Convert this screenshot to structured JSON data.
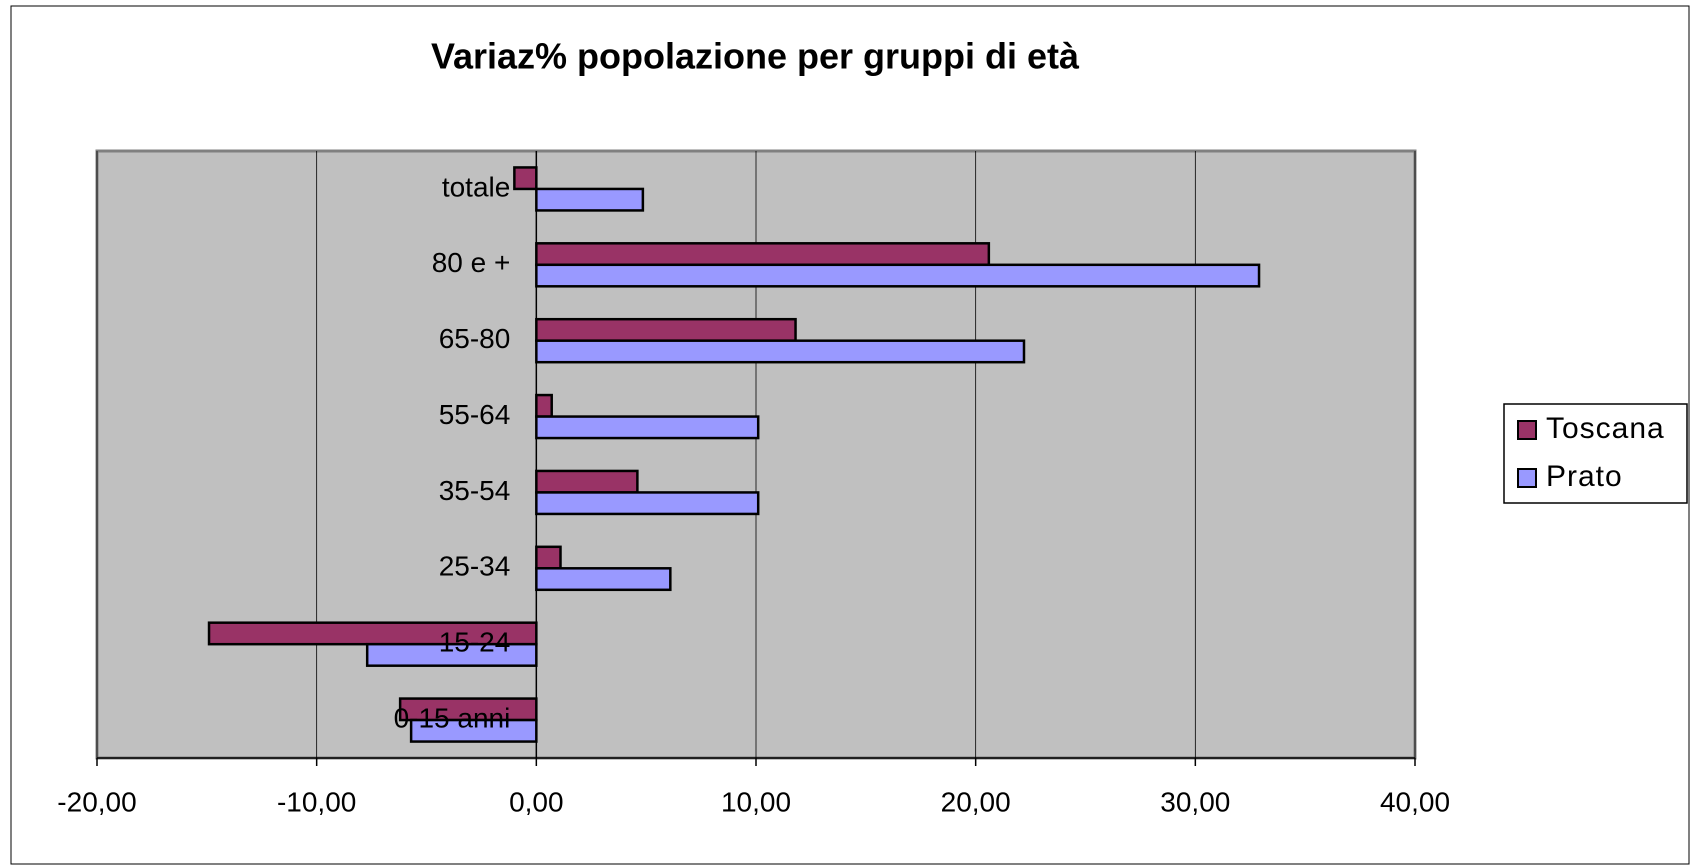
{
  "chart_data": {
    "type": "bar",
    "orientation": "horizontal",
    "title": "Variaz% popolazione per gruppi di età",
    "categories": [
      "0-15 anni",
      "15-24",
      "25-34",
      "35-54",
      "55-64",
      "65-80",
      "80 e +",
      "totale"
    ],
    "series": [
      {
        "name": "Toscana",
        "color": "#993366",
        "values": [
          -6.2,
          -14.9,
          1.1,
          4.6,
          0.7,
          11.8,
          20.6,
          -1.0
        ]
      },
      {
        "name": "Prato",
        "color": "#9999ff",
        "values": [
          -5.7,
          -7.7,
          6.1,
          10.1,
          10.1,
          22.2,
          32.9,
          4.85
        ]
      }
    ],
    "xlim": [
      -20,
      40
    ],
    "xticks": [
      {
        "value": -20,
        "label": "-20,00"
      },
      {
        "value": -10,
        "label": "-10,00"
      },
      {
        "value": 0,
        "label": "0,00"
      },
      {
        "value": 10,
        "label": "10,00"
      },
      {
        "value": 20,
        "label": "20,00"
      },
      {
        "value": 30,
        "label": "30,00"
      },
      {
        "value": 40,
        "label": "40,00"
      }
    ],
    "grid": true,
    "plot_background": "#c0c0c0",
    "legend": "right"
  }
}
